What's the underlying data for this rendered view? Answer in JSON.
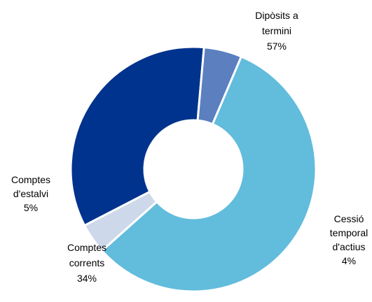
{
  "chart_data": {
    "type": "pie",
    "variant": "donut",
    "start_angle_deg": 67,
    "direction": "clockwise",
    "title": "",
    "slices": [
      {
        "lines": [
          "Dipòsits a",
          "termini",
          "57%"
        ],
        "value": 57,
        "color": "#62BCDC"
      },
      {
        "lines": [
          "Cessió",
          "temporal",
          "d'actius",
          "4%"
        ],
        "value": 4,
        "color": "#CDD9EA"
      },
      {
        "lines": [
          "Comptes",
          "corrents",
          "34%"
        ],
        "value": 34,
        "color": "#00338D"
      },
      {
        "lines": [
          "Comptes",
          "d'estalvi",
          "5%"
        ],
        "value": 5,
        "color": "#5B7FBF"
      }
    ]
  }
}
